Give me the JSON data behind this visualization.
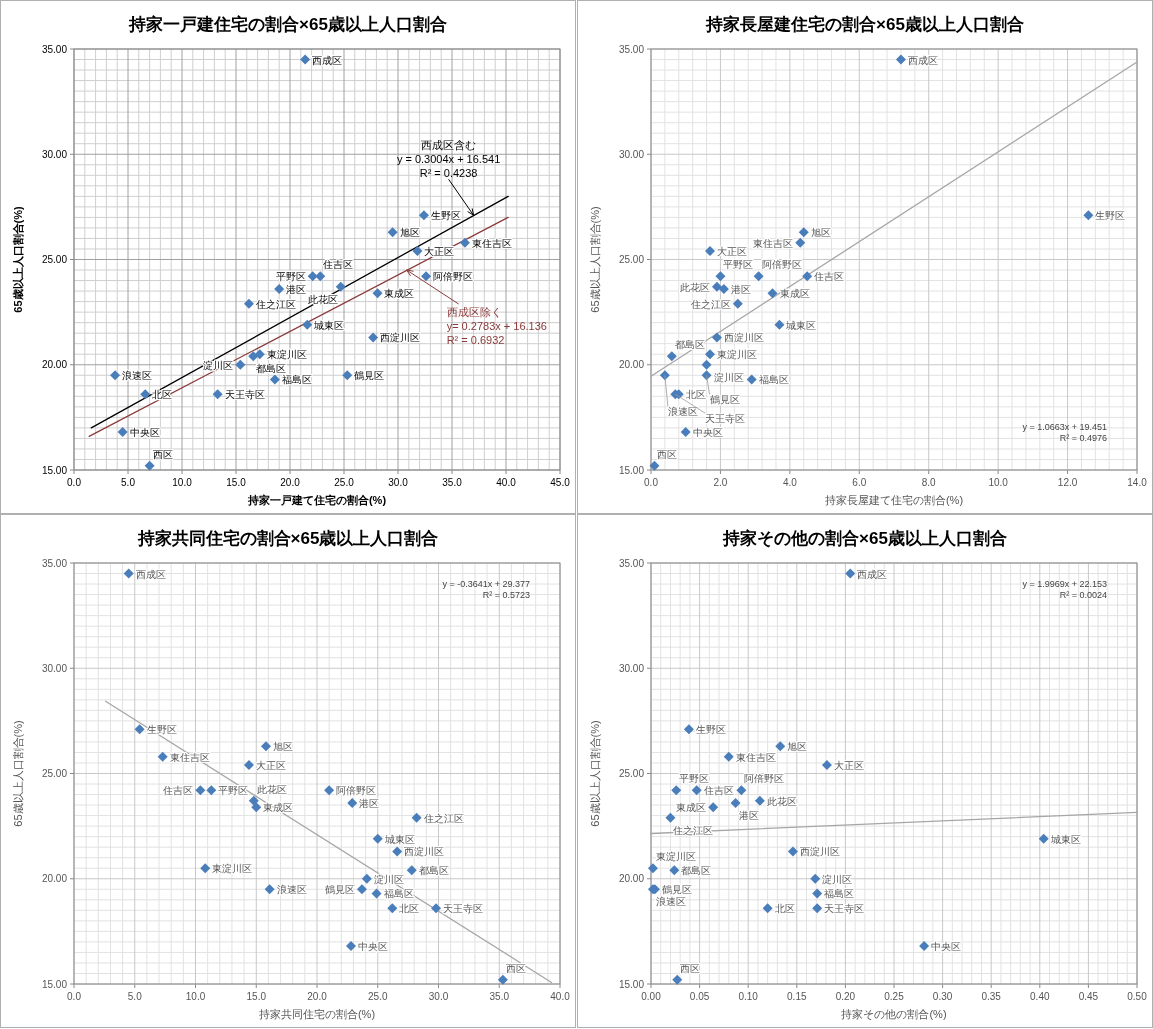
{
  "chart_data": [
    {
      "type": "scatter",
      "title": "持家一戸建住宅の割合×65歳以上人口割合",
      "xlabel": "持家一戸建て住宅の割合(%)",
      "ylabel": "65歳以上人口割合(%)",
      "xlim": [
        0,
        45
      ],
      "ylim": [
        15,
        35
      ],
      "xticks": [
        {
          "value": 0,
          "label": "0.0"
        },
        {
          "value": 5,
          "label": "5.0"
        },
        {
          "value": 10,
          "label": "10.0"
        },
        {
          "value": 15,
          "label": "15.0"
        },
        {
          "value": 20,
          "label": "20.0"
        },
        {
          "value": 25,
          "label": "25.0"
        },
        {
          "value": 30,
          "label": "30.0"
        },
        {
          "value": 35,
          "label": "35.0"
        },
        {
          "value": 40,
          "label": "40.0"
        },
        {
          "value": 45,
          "label": "45.0"
        }
      ],
      "yticks": [
        {
          "value": 15,
          "label": "15.00"
        },
        {
          "value": 20,
          "label": "20.00"
        },
        {
          "value": 25,
          "label": "25.00"
        },
        {
          "value": 30,
          "label": "30.00"
        },
        {
          "value": 35,
          "label": "35.00"
        }
      ],
      "grid": true,
      "series": [
        {
          "marker": "diamond",
          "color": "#4a7ebb",
          "x": [
            21.4,
            32.4,
            29.5,
            36.2,
            31.8,
            32.6,
            22.1,
            22.8,
            24.7,
            28.1,
            19.0,
            16.2,
            21.6,
            27.7,
            17.2,
            16.6,
            15.4,
            18.6,
            25.3,
            3.8,
            6.6,
            13.3,
            4.5,
            7.0
          ],
          "values": [
            34.5,
            27.1,
            26.3,
            25.8,
            25.4,
            24.2,
            24.2,
            24.2,
            23.7,
            23.4,
            23.6,
            22.9,
            21.9,
            21.3,
            20.5,
            20.4,
            20.0,
            19.3,
            19.5,
            19.5,
            18.6,
            18.6,
            16.8,
            15.2
          ]
        },
        {
          "type": "line",
          "color": "#000000",
          "x": [
            1.6,
            40.2
          ],
          "values": [
            17.0,
            28.0
          ]
        },
        {
          "type": "line",
          "color": "#8b3a3a",
          "x": [
            1.4,
            40.2
          ],
          "values": [
            16.6,
            27.0
          ]
        }
      ],
      "annotations": [
        {
          "text": "西成区含む\ny = 0.3004x + 16.541\nR² = 0.4238",
          "x": 37.0,
          "y": 27.1
        },
        {
          "text": "西成区除く\ny= 0.2783x + 16.136\nR² = 0.6932",
          "x": 30.8,
          "y": 24.5
        },
        {
          "text": "西成区",
          "x": 21.4,
          "y": 34.5
        },
        {
          "text": "生野区",
          "x": 32.4,
          "y": 27.1
        },
        {
          "text": "旭区",
          "x": 29.5,
          "y": 26.3
        },
        {
          "text": "東住吉区",
          "x": 36.2,
          "y": 25.8
        },
        {
          "text": "大正区",
          "x": 31.8,
          "y": 25.4
        },
        {
          "text": "阿倍野区",
          "x": 32.6,
          "y": 24.2
        },
        {
          "text": "平野区",
          "x": 22.1,
          "y": 24.2
        },
        {
          "text": "住吉区",
          "x": 22.8,
          "y": 24.2
        },
        {
          "text": "此花区",
          "x": 24.7,
          "y": 23.7
        },
        {
          "text": "東成区",
          "x": 28.1,
          "y": 23.4
        },
        {
          "text": "港区",
          "x": 19.0,
          "y": 23.6
        },
        {
          "text": "住之江区",
          "x": 16.2,
          "y": 22.9
        },
        {
          "text": "城東区",
          "x": 21.6,
          "y": 21.9
        },
        {
          "text": "西淀川区",
          "x": 27.7,
          "y": 21.3
        },
        {
          "text": "東淀川区",
          "x": 17.2,
          "y": 20.5
        },
        {
          "text": "都島区",
          "x": 16.6,
          "y": 20.4
        },
        {
          "text": "淀川区",
          "x": 15.4,
          "y": 20.0
        },
        {
          "text": "福島区",
          "x": 18.6,
          "y": 19.3
        },
        {
          "text": "鶴見区",
          "x": 25.3,
          "y": 19.5
        },
        {
          "text": "浪速区",
          "x": 3.8,
          "y": 19.5
        },
        {
          "text": "北区",
          "x": 6.6,
          "y": 18.6
        },
        {
          "text": "天王寺区",
          "x": 13.3,
          "y": 18.6
        },
        {
          "text": "中央区",
          "x": 4.5,
          "y": 16.8
        },
        {
          "text": "西区",
          "x": 7.0,
          "y": 15.2
        }
      ]
    },
    {
      "type": "scatter",
      "title": "持家長屋建住宅の割合×65歳以上人口割合",
      "xlabel": "持家長屋建て住宅の割合(%)",
      "ylabel": "65歳以上人口割合(%)",
      "xlim": [
        0,
        14
      ],
      "ylim": [
        15,
        35
      ],
      "xticks": [
        {
          "value": 0,
          "label": "0.0"
        },
        {
          "value": 2,
          "label": "2.0"
        },
        {
          "value": 4,
          "label": "4.0"
        },
        {
          "value": 6,
          "label": "6.0"
        },
        {
          "value": 8,
          "label": "8.0"
        },
        {
          "value": 10,
          "label": "10.0"
        },
        {
          "value": 12,
          "label": "12.0"
        },
        {
          "value": 14,
          "label": "14.0"
        }
      ],
      "yticks": [
        {
          "value": 15,
          "label": "15.00"
        },
        {
          "value": 20,
          "label": "20.00"
        },
        {
          "value": 25,
          "label": "25.00"
        },
        {
          "value": 30,
          "label": "30.00"
        },
        {
          "value": 35,
          "label": "35.00"
        }
      ],
      "grid": true,
      "series": [
        {
          "marker": "diamond",
          "color": "#4a7ebb",
          "x": [
            7.2,
            12.6,
            4.4,
            4.3,
            1.7,
            3.1,
            2.0,
            4.5,
            1.9,
            3.5,
            2.1,
            2.5,
            3.7,
            1.9,
            1.7,
            0.6,
            1.6,
            2.9,
            1.6,
            0.4,
            0.8,
            0.7,
            1.0,
            0.1
          ],
          "values": [
            34.5,
            27.1,
            26.3,
            25.8,
            25.4,
            24.2,
            24.2,
            24.2,
            23.7,
            23.4,
            23.6,
            22.9,
            21.9,
            21.3,
            20.5,
            20.4,
            20.0,
            19.3,
            19.5,
            19.5,
            18.6,
            18.6,
            16.8,
            15.2
          ]
        },
        {
          "type": "line",
          "color": "#a6a6a6",
          "x": [
            0,
            14
          ],
          "values": [
            19.45,
            34.38
          ]
        }
      ],
      "annotations": [
        "y = 1.0663x + 19.451\nR² = 0.4976",
        {
          "text": "西成区",
          "x": 7.2,
          "y": 34.5
        },
        {
          "text": "生野区",
          "x": 12.6,
          "y": 27.1
        },
        {
          "text": "旭区",
          "x": 4.4,
          "y": 26.3
        },
        {
          "text": "東住吉区",
          "x": 4.3,
          "y": 25.8
        },
        {
          "text": "大正区",
          "x": 1.7,
          "y": 25.4
        },
        {
          "text": "阿倍野区",
          "x": 3.1,
          "y": 24.2
        },
        {
          "text": "平野区",
          "x": 2.0,
          "y": 24.2
        },
        {
          "text": "住吉区",
          "x": 4.5,
          "y": 24.2
        },
        {
          "text": "此花区",
          "x": 1.9,
          "y": 23.7
        },
        {
          "text": "東成区",
          "x": 3.5,
          "y": 23.4
        },
        {
          "text": "港区",
          "x": 2.1,
          "y": 23.6
        },
        {
          "text": "住之江区",
          "x": 2.5,
          "y": 22.9
        },
        {
          "text": "城東区",
          "x": 3.7,
          "y": 21.9
        },
        {
          "text": "西淀川区",
          "x": 1.9,
          "y": 21.3
        },
        {
          "text": "東淀川区",
          "x": 1.7,
          "y": 20.5
        },
        {
          "text": "都島区",
          "x": 0.6,
          "y": 20.4
        },
        {
          "text": "淀川区",
          "x": 1.6,
          "y": 20.0
        },
        {
          "text": "福島区",
          "x": 2.9,
          "y": 19.3
        },
        {
          "text": "鶴見区",
          "x": 1.6,
          "y": 19.5
        },
        {
          "text": "浪速区",
          "x": 0.4,
          "y": 19.5
        },
        {
          "text": "北区",
          "x": 0.8,
          "y": 18.6
        },
        {
          "text": "天王寺区",
          "x": 0.7,
          "y": 18.6
        },
        {
          "text": "中央区",
          "x": 1.0,
          "y": 16.8
        },
        {
          "text": "西区",
          "x": 0.1,
          "y": 15.2
        }
      ]
    },
    {
      "type": "scatter",
      "title": "持家共同住宅の割合×65歳以上人口割合",
      "xlabel": "持家共同住宅の割合(%)",
      "ylabel": "65歳以上人口割合(%)",
      "xlim": [
        0,
        40
      ],
      "ylim": [
        15,
        35
      ],
      "xticks": [
        {
          "value": 0,
          "label": "0.0"
        },
        {
          "value": 5,
          "label": "5.0"
        },
        {
          "value": 10,
          "label": "10.0"
        },
        {
          "value": 15,
          "label": "15.0"
        },
        {
          "value": 20,
          "label": "20.0"
        },
        {
          "value": 25,
          "label": "25.0"
        },
        {
          "value": 30,
          "label": "30.0"
        },
        {
          "value": 35,
          "label": "35.0"
        },
        {
          "value": 40,
          "label": "40.0"
        }
      ],
      "yticks": [
        {
          "value": 15,
          "label": "15.00"
        },
        {
          "value": 20,
          "label": "20.00"
        },
        {
          "value": 25,
          "label": "25.00"
        },
        {
          "value": 30,
          "label": "30.00"
        },
        {
          "value": 35,
          "label": "35.00"
        }
      ],
      "grid": true,
      "series": [
        {
          "marker": "diamond",
          "color": "#4a7ebb",
          "x": [
            4.5,
            5.4,
            15.8,
            7.3,
            14.4,
            21.0,
            11.3,
            10.4,
            14.8,
            15.0,
            22.9,
            28.2,
            25.0,
            26.6,
            10.8,
            27.8,
            24.1,
            24.9,
            23.7,
            16.1,
            26.2,
            29.8,
            22.8,
            35.3
          ],
          "values": [
            34.5,
            27.1,
            26.3,
            25.8,
            25.4,
            24.2,
            24.2,
            24.2,
            23.7,
            23.4,
            23.6,
            22.9,
            21.9,
            21.3,
            20.5,
            20.4,
            20.0,
            19.3,
            19.5,
            19.5,
            18.6,
            18.6,
            16.8,
            15.2
          ]
        },
        {
          "type": "line",
          "color": "#a6a6a6",
          "x": [
            2.6,
            39.3
          ],
          "values": [
            28.43,
            15.07
          ]
        }
      ],
      "annotations": [
        "y = -0.3641x + 29.377\nR² = 0.5723",
        {
          "text": "西成区",
          "x": 4.5,
          "y": 34.5
        },
        {
          "text": "生野区",
          "x": 5.4,
          "y": 27.1
        },
        {
          "text": "旭区",
          "x": 15.8,
          "y": 26.3
        },
        {
          "text": "東住吉区",
          "x": 7.3,
          "y": 25.8
        },
        {
          "text": "大正区",
          "x": 14.4,
          "y": 25.4
        },
        {
          "text": "阿倍野区",
          "x": 21.0,
          "y": 24.2
        },
        {
          "text": "平野区",
          "x": 11.3,
          "y": 24.2
        },
        {
          "text": "住吉区",
          "x": 10.4,
          "y": 24.2
        },
        {
          "text": "此花区",
          "x": 14.8,
          "y": 23.7
        },
        {
          "text": "東成区",
          "x": 15.0,
          "y": 23.4
        },
        {
          "text": "港区",
          "x": 22.9,
          "y": 23.6
        },
        {
          "text": "住之江区",
          "x": 28.2,
          "y": 22.9
        },
        {
          "text": "城東区",
          "x": 25.0,
          "y": 21.9
        },
        {
          "text": "西淀川区",
          "x": 26.6,
          "y": 21.3
        },
        {
          "text": "東淀川区",
          "x": 10.8,
          "y": 20.5
        },
        {
          "text": "都島区",
          "x": 27.8,
          "y": 20.4
        },
        {
          "text": "淀川区",
          "x": 24.1,
          "y": 20.0
        },
        {
          "text": "福島区",
          "x": 24.9,
          "y": 19.3
        },
        {
          "text": "鶴見区",
          "x": 23.7,
          "y": 19.5
        },
        {
          "text": "浪速区",
          "x": 16.1,
          "y": 19.5
        },
        {
          "text": "北区",
          "x": 26.2,
          "y": 18.6
        },
        {
          "text": "天王寺区",
          "x": 29.8,
          "y": 18.6
        },
        {
          "text": "中央区",
          "x": 22.8,
          "y": 16.8
        },
        {
          "text": "西区",
          "x": 35.3,
          "y": 15.2
        }
      ]
    },
    {
      "type": "scatter",
      "title": "持家その他の割合×65歳以上人口割合",
      "xlabel": "持家その他の割合(%)",
      "ylabel": "65歳以上人口割合(%)",
      "xlim": [
        0,
        0.5
      ],
      "ylim": [
        15,
        35
      ],
      "xticks": [
        {
          "value": 0,
          "label": "0.00"
        },
        {
          "value": 0.05,
          "label": "0.05"
        },
        {
          "value": 0.1,
          "label": "0.10"
        },
        {
          "value": 0.15,
          "label": "0.15"
        },
        {
          "value": 0.2,
          "label": "0.20"
        },
        {
          "value": 0.25,
          "label": "0.25"
        },
        {
          "value": 0.3,
          "label": "0.30"
        },
        {
          "value": 0.35,
          "label": "0.35"
        },
        {
          "value": 0.4,
          "label": "0.40"
        },
        {
          "value": 0.45,
          "label": "0.45"
        },
        {
          "value": 0.5,
          "label": "0.50"
        }
      ],
      "yticks": [
        {
          "value": 15,
          "label": "15.00"
        },
        {
          "value": 20,
          "label": "20.00"
        },
        {
          "value": 25,
          "label": "25.00"
        },
        {
          "value": 30,
          "label": "30.00"
        },
        {
          "value": 35,
          "label": "35.00"
        }
      ],
      "grid": true,
      "series": [
        {
          "marker": "diamond",
          "color": "#4a7ebb",
          "x": [
            0.205,
            0.039,
            0.133,
            0.08,
            0.181,
            0.093,
            0.026,
            0.047,
            0.112,
            0.064,
            0.087,
            0.02,
            0.404,
            0.146,
            0.002,
            0.024,
            0.169,
            0.171,
            0.004,
            0.002,
            0.12,
            0.171,
            0.281,
            0.027
          ],
          "values": [
            34.5,
            27.1,
            26.3,
            25.8,
            25.4,
            24.2,
            24.2,
            24.2,
            23.7,
            23.4,
            23.6,
            22.9,
            21.9,
            21.3,
            20.5,
            20.4,
            20.0,
            19.3,
            19.5,
            19.5,
            18.6,
            18.6,
            16.8,
            15.2
          ]
        },
        {
          "type": "line",
          "color": "#a6a6a6",
          "x": [
            0,
            0.5
          ],
          "values": [
            22.15,
            23.15
          ]
        }
      ],
      "annotations": [
        "y = 1.9969x + 22.153\nR² = 0.0024",
        {
          "text": "西成区",
          "x": 0.205,
          "y": 34.5
        },
        {
          "text": "生野区",
          "x": 0.039,
          "y": 27.1
        },
        {
          "text": "旭区",
          "x": 0.133,
          "y": 26.3
        },
        {
          "text": "東住吉区",
          "x": 0.08,
          "y": 25.8
        },
        {
          "text": "大正区",
          "x": 0.181,
          "y": 25.4
        },
        {
          "text": "阿倍野区",
          "x": 0.093,
          "y": 24.2
        },
        {
          "text": "平野区",
          "x": 0.026,
          "y": 24.2
        },
        {
          "text": "住吉区",
          "x": 0.047,
          "y": 24.2
        },
        {
          "text": "此花区",
          "x": 0.112,
          "y": 23.7
        },
        {
          "text": "東成区",
          "x": 0.064,
          "y": 23.4
        },
        {
          "text": "港区",
          "x": 0.087,
          "y": 23.6
        },
        {
          "text": "住之江区",
          "x": 0.02,
          "y": 22.9
        },
        {
          "text": "城東区",
          "x": 0.404,
          "y": 21.9
        },
        {
          "text": "西淀川区",
          "x": 0.146,
          "y": 21.3
        },
        {
          "text": "東淀川区",
          "x": 0.002,
          "y": 20.5
        },
        {
          "text": "都島区",
          "x": 0.024,
          "y": 20.4
        },
        {
          "text": "淀川区",
          "x": 0.169,
          "y": 20.0
        },
        {
          "text": "福島区",
          "x": 0.171,
          "y": 19.3
        },
        {
          "text": "鶴見区",
          "x": 0.004,
          "y": 19.5
        },
        {
          "text": "浪速区",
          "x": 0.002,
          "y": 19.5
        },
        {
          "text": "北区",
          "x": 0.12,
          "y": 18.6
        },
        {
          "text": "天王寺区",
          "x": 0.171,
          "y": 18.6
        },
        {
          "text": "中央区",
          "x": 0.281,
          "y": 16.8
        },
        {
          "text": "西区",
          "x": 0.027,
          "y": 15.2
        }
      ]
    }
  ]
}
